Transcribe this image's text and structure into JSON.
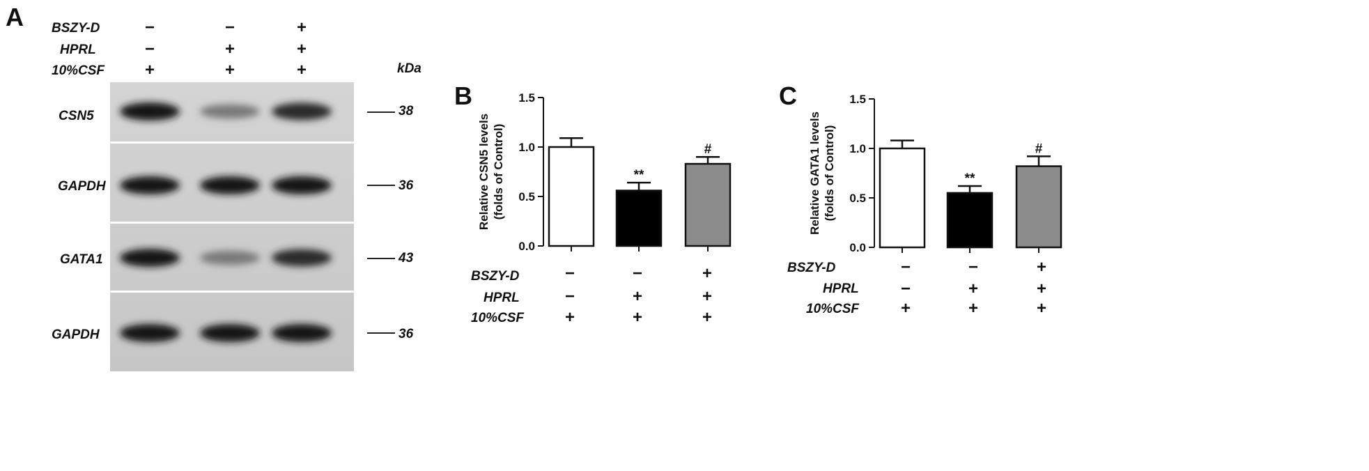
{
  "panels": {
    "a": "A",
    "b": "B",
    "c": "C"
  },
  "conditions": {
    "labels": [
      "BSZY-D",
      "HPRL",
      "10%CSF"
    ],
    "lanes": [
      [
        "−",
        "−",
        "+"
      ],
      [
        "−",
        "+",
        "+"
      ],
      [
        "+",
        "+",
        "+"
      ]
    ]
  },
  "blot": {
    "kda_label": "kDa",
    "rows": [
      {
        "protein": "CSN5",
        "kda": "38",
        "intensity": [
          1.0,
          0.45,
          0.9
        ]
      },
      {
        "protein": "GAPDH",
        "kda": "36",
        "intensity": [
          1.0,
          1.0,
          1.0
        ]
      },
      {
        "protein": "GATA1",
        "kda": "43",
        "intensity": [
          1.0,
          0.45,
          0.9
        ]
      },
      {
        "protein": "GAPDH",
        "kda": "36",
        "intensity": [
          1.0,
          1.0,
          1.0
        ]
      }
    ]
  },
  "chart_data": [
    {
      "type": "bar",
      "panel": "B",
      "ylabel": [
        "Relative CSN5 levels",
        "(folds of Control)"
      ],
      "ylim": [
        0,
        1.5
      ],
      "yticks": [
        "0.0",
        "0.5",
        "1.0",
        "1.5"
      ],
      "values": [
        1.0,
        0.56,
        0.83
      ],
      "errors": [
        0.09,
        0.08,
        0.07
      ],
      "annotations": [
        "",
        "**",
        "#"
      ],
      "colors": [
        "#ffffff",
        "#000000",
        "#8c8c8c"
      ],
      "conditions_ref": "conditions"
    },
    {
      "type": "bar",
      "panel": "C",
      "ylabel": [
        "Relative GATA1 levels",
        "(folds of Control)"
      ],
      "ylim": [
        0,
        1.5
      ],
      "yticks": [
        "0.0",
        "0.5",
        "1.0",
        "1.5"
      ],
      "values": [
        1.0,
        0.55,
        0.82
      ],
      "errors": [
        0.08,
        0.07,
        0.1
      ],
      "annotations": [
        "",
        "**",
        "#"
      ],
      "colors": [
        "#ffffff",
        "#000000",
        "#8c8c8c"
      ],
      "conditions_ref": "conditions"
    }
  ]
}
